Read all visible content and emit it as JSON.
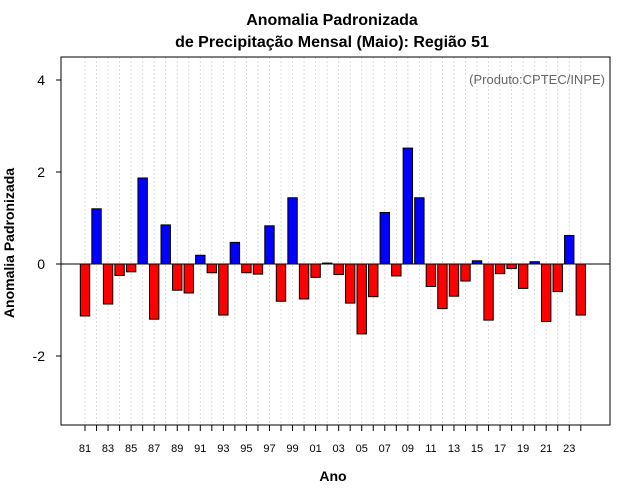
{
  "chart_data": {
    "type": "bar",
    "title": "Anomalia Padronizada",
    "subtitle": "de Precipitação Mensal (Maio): Região 51",
    "xlabel": "Ano",
    "ylabel": "Anomalia Padronizada",
    "annotation": "(Produto:CPTEC/INPE)",
    "ylim": [
      -3.5,
      4.5
    ],
    "yticks": [
      -2,
      0,
      2,
      4
    ],
    "ytick_labels": [
      "-2",
      "0",
      "2",
      "4"
    ],
    "xtick_labels": [
      "81",
      "83",
      "85",
      "87",
      "89",
      "91",
      "93",
      "95",
      "97",
      "99",
      "01",
      "03",
      "05",
      "07",
      "09",
      "11",
      "13",
      "15",
      "17",
      "19",
      "21",
      "23"
    ],
    "grid": true,
    "colors": {
      "positive": "#0000ff",
      "negative": "#ff0000"
    },
    "categories": [
      "1981",
      "1982",
      "1983",
      "1984",
      "1985",
      "1986",
      "1987",
      "1988",
      "1989",
      "1990",
      "1991",
      "1992",
      "1993",
      "1994",
      "1995",
      "1996",
      "1997",
      "1998",
      "1999",
      "2000",
      "2001",
      "2002",
      "2003",
      "2004",
      "2005",
      "2006",
      "2007",
      "2008",
      "2009",
      "2010",
      "2011",
      "2012",
      "2013",
      "2014",
      "2015",
      "2016",
      "2017",
      "2018",
      "2019",
      "2020",
      "2021",
      "2022",
      "2023",
      "2024"
    ],
    "values": [
      -1.13,
      1.2,
      -0.87,
      -0.25,
      -0.17,
      1.87,
      -1.2,
      0.85,
      -0.57,
      -0.63,
      0.19,
      -0.19,
      -1.11,
      0.47,
      -0.19,
      -0.22,
      0.83,
      -0.81,
      1.44,
      -0.76,
      -0.29,
      0.02,
      -0.23,
      -0.85,
      -1.52,
      -0.71,
      1.12,
      -0.26,
      2.52,
      1.44,
      -0.49,
      -0.97,
      -0.7,
      -0.37,
      0.07,
      -1.22,
      -0.21,
      -0.1,
      -0.53,
      0.05,
      -1.25,
      -0.6,
      0.62,
      -1.11
    ]
  }
}
